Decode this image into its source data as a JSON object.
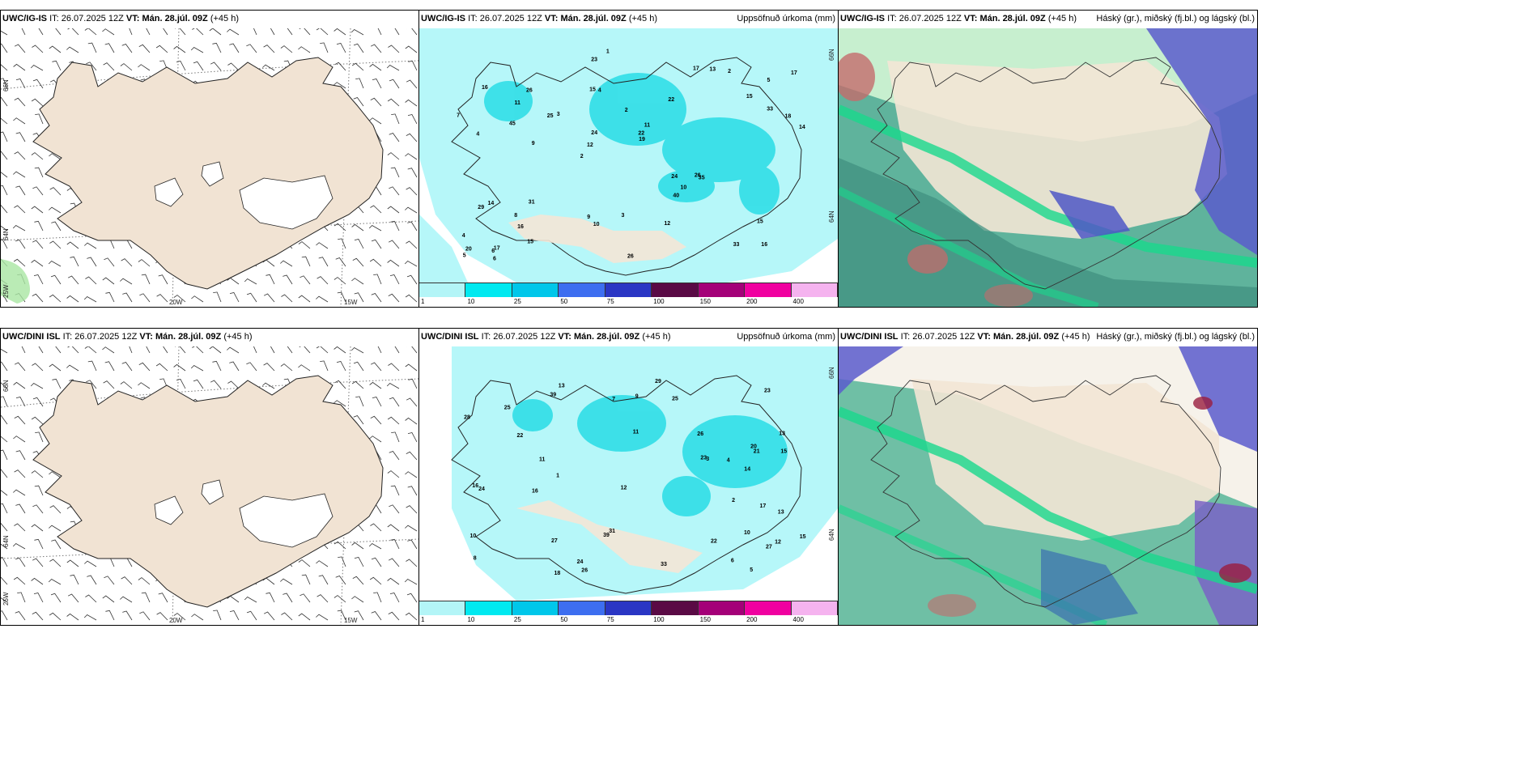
{
  "rows": [
    {
      "model": "UWC/IG-IS",
      "it_label": "IT:",
      "it_value": "26.07.2025 12Z",
      "vt_label": "VT:",
      "vt_value": "Mán. 28.júl. 09Z",
      "lead": "(+45 h)",
      "precip_title": "Uppsöfnuð úrkoma (mm)",
      "cloud_title": "Háský (gr.), miðský (fj.bl.) og lágský (bl.)",
      "lat_labels": [
        "66N",
        "64N",
        "25W"
      ],
      "lon_labels": [
        "20W",
        "15W"
      ],
      "precip_lat_labels": [
        "66N",
        "64N"
      ]
    },
    {
      "model": "UWC/DINI ISL",
      "it_label": "IT:",
      "it_value": "26.07.2025 12Z",
      "vt_label": "VT:",
      "vt_value": "Mán. 28.júl. 09Z",
      "lead": "(+45 h)",
      "precip_title": "Uppsöfnuð úrkoma (mm)",
      "cloud_title": "Háský (gr.), miðský (fj.bl.) og lágský (bl.)",
      "lat_labels": [
        "66N",
        "64N",
        "25W"
      ],
      "lon_labels": [
        "20W",
        "15W"
      ],
      "precip_lat_labels": [
        "66N",
        "64N"
      ]
    }
  ],
  "colorbar": {
    "ticks": [
      "1",
      "10",
      "25",
      "50",
      "75",
      "100",
      "150",
      "200",
      "400"
    ],
    "colors": [
      "#b3f5f7",
      "#00e9f0",
      "#00c7ea",
      "#3d6ef0",
      "#2a36c4",
      "#5a0a45",
      "#a40078",
      "#f000a0",
      "#f5b3ef"
    ]
  },
  "precip_numbers_top": [
    "16",
    "4",
    "5",
    "2",
    "22",
    "17",
    "15",
    "2",
    "14",
    "3",
    "4",
    "16",
    "4",
    "11",
    "35",
    "16",
    "23",
    "14",
    "24",
    "33",
    "12",
    "9",
    "24",
    "26",
    "17",
    "31",
    "33",
    "15",
    "26",
    "26",
    "25",
    "45",
    "40",
    "15",
    "18",
    "22",
    "20",
    "10",
    "19",
    "29",
    "15",
    "17",
    "10",
    "12",
    "8",
    "6",
    "5",
    "3",
    "2",
    "1",
    "9",
    "7",
    "11",
    "13",
    "6"
  ],
  "precip_numbers_bottom": [
    "10",
    "13",
    "12",
    "11",
    "8",
    "13",
    "20",
    "27",
    "23",
    "22",
    "15",
    "28",
    "14",
    "26",
    "10",
    "25",
    "27",
    "39",
    "31",
    "21",
    "16",
    "24",
    "33",
    "23",
    "24",
    "39",
    "29",
    "25",
    "26",
    "15",
    "16",
    "22",
    "18",
    "12",
    "17",
    "6",
    "3",
    "7",
    "5",
    "1",
    "2",
    "4",
    "9",
    "11",
    "13"
  ]
}
